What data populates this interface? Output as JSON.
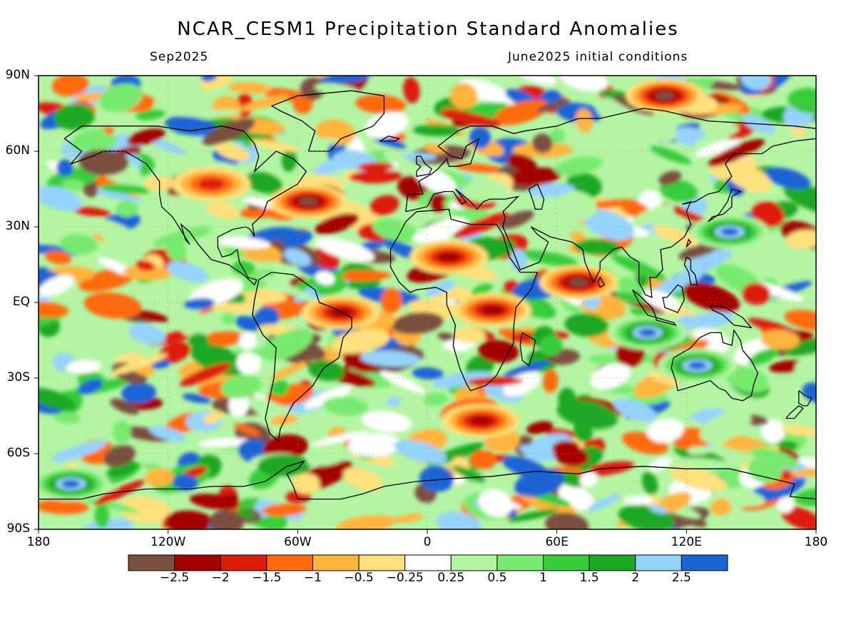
{
  "title": "NCAR_CESM1 Precipitation Standard Anomalies",
  "subtitle_left": "Sep2025",
  "subtitle_right": "June2025 initial conditions",
  "lat_labels": [
    "90N",
    "60N",
    "30N",
    "EQ",
    "30S",
    "60S",
    "90S"
  ],
  "lon_labels": [
    "180",
    "120W",
    "60W",
    "0",
    "60E",
    "120E",
    "180"
  ],
  "colorbar": {
    "colors": [
      "#7a5040",
      "#a50000",
      "#dd1d0c",
      "#ff6a0d",
      "#ffb43c",
      "#ffe07a",
      "#ffffff",
      "#b4f5a4",
      "#78ea6e",
      "#38cc3a",
      "#1fa824",
      "#96d3fa",
      "#1a64d6"
    ],
    "labels": [
      "-2.5",
      "-2",
      "-1.5",
      "-1",
      "-0.5",
      "-0.25",
      "0.25",
      "0.5",
      "1",
      "1.5",
      "2",
      "2.5"
    ]
  },
  "anomaly_regions": [
    {
      "lon": -100,
      "lat": 47,
      "value": -1.5,
      "note": "central North America"
    },
    {
      "lon": -55,
      "lat": 40,
      "value": -2.7,
      "note": "NW Atlantic"
    },
    {
      "lon": 10,
      "lat": 18,
      "value": -1.8,
      "note": "Sahara/Sahel"
    },
    {
      "lon": 30,
      "lat": -3,
      "value": -2.0,
      "note": "East Africa"
    },
    {
      "lon": 70,
      "lat": 8,
      "value": -2.2,
      "note": "Arabian Sea"
    },
    {
      "lon": 110,
      "lat": 82,
      "value": -2.7,
      "note": "Arctic Siberia"
    },
    {
      "lon": 125,
      "lat": -25,
      "value": 2.6,
      "note": "Australia"
    },
    {
      "lon": 102,
      "lat": -12,
      "value": 2.6,
      "note": "Eastern Indian Ocean"
    },
    {
      "lon": 140,
      "lat": 28,
      "value": 2.4,
      "note": "NW Pacific"
    },
    {
      "lon": -165,
      "lat": -72,
      "value": 2.6,
      "note": "Ross Sea"
    },
    {
      "lon": -40,
      "lat": -4,
      "value": -1.8,
      "note": "Equatorial Atlantic"
    },
    {
      "lon": 25,
      "lat": -47,
      "value": -1.6,
      "note": "South Atlantic"
    }
  ]
}
